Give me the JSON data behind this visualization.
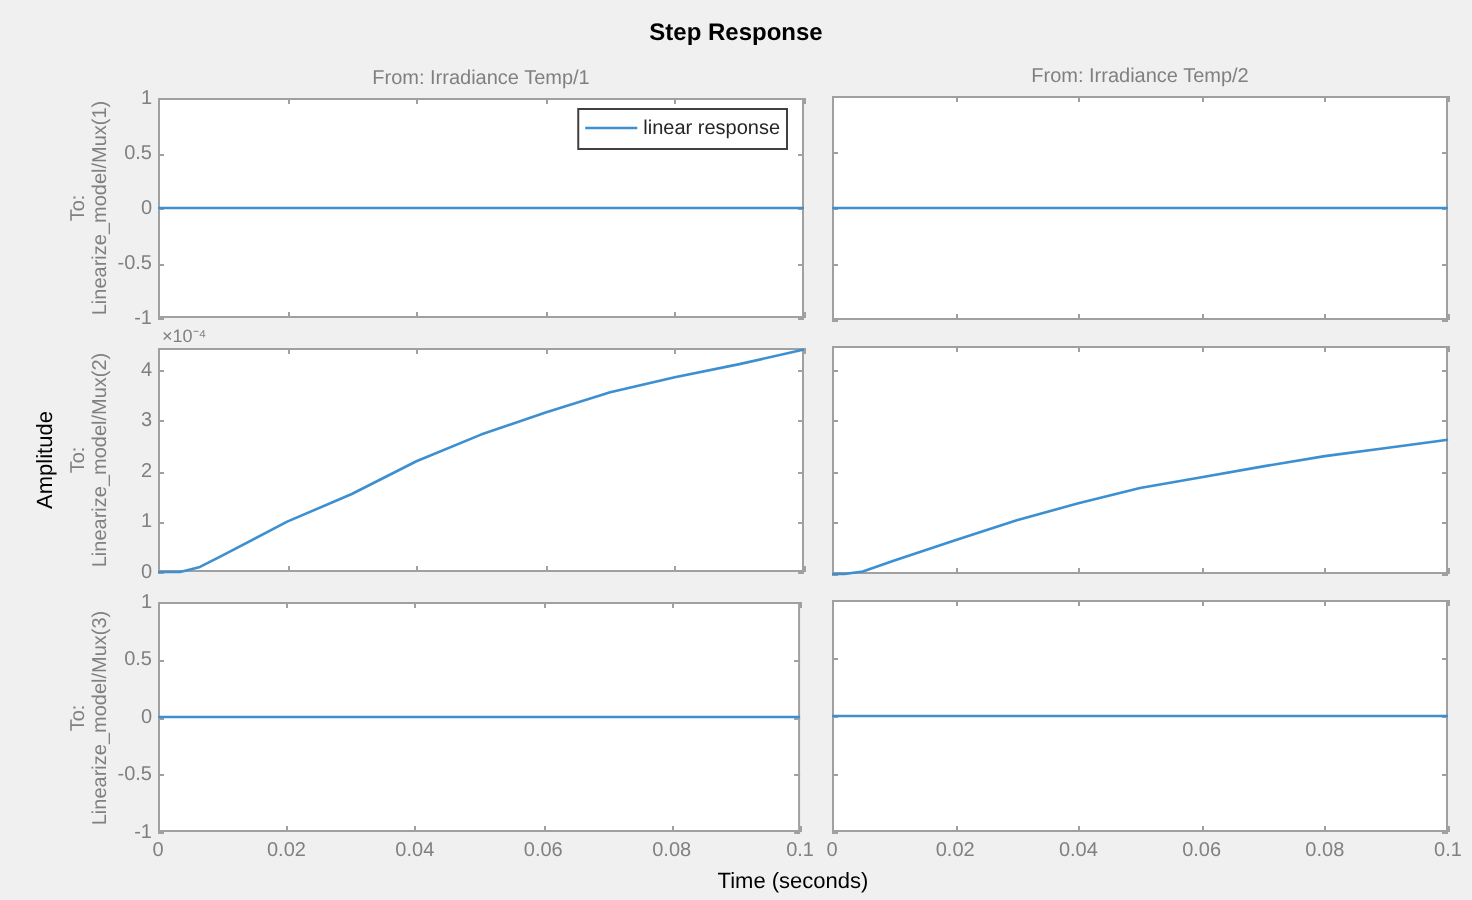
{
  "chart_data": [
    {
      "type": "line",
      "title": "Step Response",
      "subtitle": "From: Irradiance Temp/1",
      "ylabel": "To: Linearize_model/Mux(1)",
      "legend": "top right",
      "tick_labels": "y",
      "xlim": [
        0,
        0.1
      ],
      "xticks": [
        0,
        0.02,
        0.04,
        0.06,
        0.08,
        0.1
      ],
      "ylim": [
        -1,
        1
      ],
      "yticks": [
        -1,
        -0.5,
        0,
        0.5,
        1
      ],
      "series": [
        {
          "name": "linear response",
          "color": "#3c8fd0",
          "x": [
            0,
            0.1
          ],
          "values": [
            0,
            0
          ]
        }
      ]
    },
    {
      "type": "line",
      "subtitle": "From: Irradiance Temp/2",
      "tick_labels": false,
      "xlim": [
        0,
        0.1
      ],
      "xticks": [
        0,
        0.02,
        0.04,
        0.06,
        0.08,
        0.1
      ],
      "ylim": [
        -1,
        1
      ],
      "yticks": [
        -1,
        -0.5,
        0,
        0.5,
        1
      ],
      "series": [
        {
          "color": "#3c8fd0",
          "x": [
            0,
            0.1
          ],
          "values": [
            0,
            0
          ]
        }
      ]
    },
    {
      "type": "line",
      "ylabel": "To: Linearize_model/Mux(2)",
      "annotations": [
        "Amplitude",
        "×10⁻⁴"
      ],
      "tick_labels": "y",
      "xlim": [
        0,
        0.1
      ],
      "xticks": [
        0,
        0.02,
        0.04,
        0.06,
        0.08,
        0.1
      ],
      "ylim": [
        0,
        4.45
      ],
      "yticks": [
        0,
        1,
        2,
        3,
        4
      ],
      "series": [
        {
          "color": "#3c8fd0",
          "x": [
            0,
            0.002,
            0.0034,
            0.005,
            0.0065,
            0.01,
            0.02,
            0.03,
            0.04,
            0.05,
            0.06,
            0.07,
            0.08,
            0.09,
            0.1
          ],
          "values": [
            0,
            0,
            0,
            0.05,
            0.1,
            0.33,
            1,
            1.55,
            2.2,
            2.73,
            3.17,
            3.57,
            3.87,
            4.13,
            4.42
          ]
        }
      ]
    },
    {
      "type": "line",
      "tick_labels": false,
      "xlim": [
        0,
        0.1
      ],
      "xticks": [
        0,
        0.02,
        0.04,
        0.06,
        0.08,
        0.1
      ],
      "ylim": [
        0,
        4.45
      ],
      "yticks": [
        0,
        1,
        2,
        3,
        4
      ],
      "series": [
        {
          "color": "#3c8fd0",
          "x": [
            0,
            0.002,
            0.005,
            0.01,
            0.02,
            0.03,
            0.04,
            0.05,
            0.06,
            0.07,
            0.08,
            0.09,
            0.1
          ],
          "values": [
            0,
            0,
            0.05,
            0.26,
            0.66,
            1.05,
            1.38,
            1.68,
            1.89,
            2.1,
            2.3,
            2.46,
            2.62
          ]
        }
      ]
    },
    {
      "type": "line",
      "ylabel": "To: Linearize_model/Mux(3)",
      "xlabel": "Time (seconds)",
      "xlim": [
        0,
        0.1
      ],
      "xticks": [
        0,
        0.02,
        0.04,
        0.06,
        0.08,
        0.1
      ],
      "ylim": [
        -1,
        1
      ],
      "yticks": [
        -1,
        -0.5,
        0,
        0.5,
        1
      ],
      "series": [
        {
          "color": "#3c8fd0",
          "x": [
            0,
            0.1
          ],
          "values": [
            0,
            0
          ]
        }
      ]
    },
    {
      "type": "line",
      "tick_labels": "x",
      "xlim": [
        0,
        0.1
      ],
      "xticks": [
        0,
        0.02,
        0.04,
        0.06,
        0.08,
        0.1
      ],
      "ylim": [
        -1,
        1
      ],
      "yticks": [
        -1,
        -0.5,
        0,
        0.5,
        1
      ],
      "series": [
        {
          "color": "#3c8fd0",
          "x": [
            0,
            0.1
          ],
          "values": [
            0,
            0
          ]
        }
      ]
    }
  ]
}
